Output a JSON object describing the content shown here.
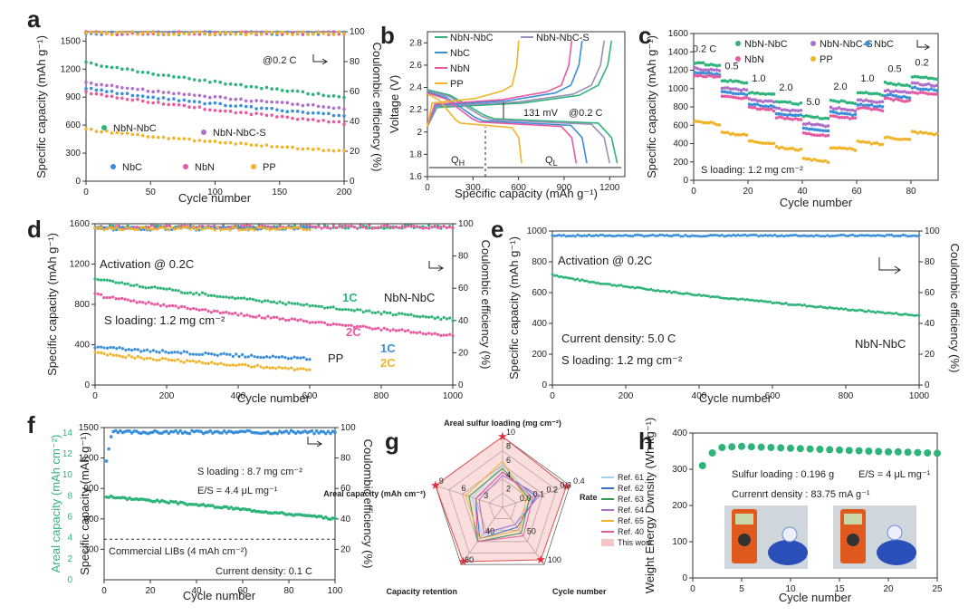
{
  "panels": {
    "a": {
      "label": "a",
      "xlabel": "Cycle number",
      "ylabel": "Specific capacity (mAh g⁻¹)",
      "y2label": "Coulombic efficiency (%)",
      "xlim": [
        0,
        200
      ],
      "ylim": [
        0,
        1600
      ],
      "y2lim": [
        0,
        100
      ],
      "xticks": [
        0,
        50,
        100,
        150,
        200
      ],
      "yticks": [
        0,
        300,
        600,
        900,
        1200,
        1500
      ],
      "y2ticks": [
        0,
        20,
        40,
        60,
        80,
        100
      ],
      "rate": "@0.2 C",
      "series": [
        {
          "name": "NbN-NbC",
          "color": "#2eb37a",
          "start": 1280,
          "end": 900
        },
        {
          "name": "NbN-NbC-S",
          "color": "#b06ec9",
          "start": 1060,
          "end": 780
        },
        {
          "name": "NbC",
          "color": "#3a8fd9",
          "start": 1000,
          "end": 700
        },
        {
          "name": "NbN",
          "color": "#e85aa0",
          "start": 960,
          "end": 620
        },
        {
          "name": "PP",
          "color": "#f0b429",
          "start": 560,
          "end": 320
        }
      ]
    },
    "b": {
      "label": "b",
      "xlabel": "Specific capacity (mAh g⁻¹)",
      "ylabel": "Voltage (V)",
      "xlim": [
        0,
        1300
      ],
      "ylim": [
        1.6,
        2.9
      ],
      "xticks": [
        0,
        300,
        600,
        900,
        1200
      ],
      "yticks": [
        1.6,
        1.8,
        2.0,
        2.2,
        2.4,
        2.6,
        2.8
      ],
      "rate": "@0.2 C",
      "gap": "131 mV",
      "qh": "Q",
      "qh_sub": "H",
      "ql": "Q",
      "ql_sub": "L",
      "series": [
        {
          "name": "NbN-NbC",
          "color": "#2eb37a",
          "cap": 1250
        },
        {
          "name": "NbN-NbC-S",
          "color": "#9b8fb5",
          "cap": 1200
        },
        {
          "name": "NbC",
          "color": "#3a8fd9",
          "cap": 1050
        },
        {
          "name": "NbN",
          "color": "#e85aa0",
          "cap": 980
        },
        {
          "name": "PP",
          "color": "#f0b429",
          "cap": 620
        }
      ]
    },
    "c": {
      "label": "c",
      "xlabel": "Cycle number",
      "ylabel": "Specific capacity (mAh g⁻¹)",
      "xlim": [
        0,
        90
      ],
      "ylim": [
        0,
        1600
      ],
      "xticks": [
        0,
        20,
        40,
        60,
        80
      ],
      "yticks": [
        0,
        200,
        400,
        600,
        800,
        1000,
        1200,
        1400,
        1600
      ],
      "loading": "S loading: 1.2 mg cm⁻²",
      "rates": [
        "0.2 C",
        "0.5",
        "1.0",
        "2.0",
        "5.0",
        "2.0",
        "1.0",
        "0.5",
        "0.2"
      ],
      "series": [
        {
          "name": "NbN-NbC",
          "color": "#2eb37a",
          "levels": [
            1280,
            1090,
            960,
            860,
            700,
            870,
            960,
            1060,
            1130
          ]
        },
        {
          "name": "NbN-NbC-S",
          "color": "#b06ec9",
          "levels": [
            1220,
            1010,
            880,
            780,
            620,
            790,
            880,
            980,
            1060
          ]
        },
        {
          "name": "NbC",
          "color": "#3a8fd9",
          "levels": [
            1180,
            960,
            830,
            730,
            560,
            740,
            830,
            930,
            1010
          ]
        },
        {
          "name": "NbN",
          "color": "#e85aa0",
          "levels": [
            1150,
            920,
            790,
            690,
            510,
            700,
            790,
            890,
            960
          ]
        },
        {
          "name": "PP",
          "color": "#f0b429",
          "levels": [
            640,
            520,
            430,
            360,
            230,
            360,
            420,
            470,
            530
          ]
        }
      ]
    },
    "d": {
      "label": "d",
      "xlabel": "Cycle number",
      "ylabel": "Specific capacity (mAh g⁻¹)",
      "y2label": "Coulombic efficiency (%)",
      "xlim": [
        0,
        1000
      ],
      "ylim": [
        0,
        1600
      ],
      "y2lim": [
        0,
        100
      ],
      "xticks": [
        0,
        200,
        400,
        600,
        800,
        1000
      ],
      "yticks": [
        0,
        400,
        800,
        1200,
        1600
      ],
      "y2ticks": [
        0,
        20,
        40,
        60,
        80,
        100
      ],
      "activation": "Activation @ 0.2C",
      "loading": "S loading: 1.2 mg cm⁻²",
      "tag_1c": "1C",
      "tag_2c": "2C",
      "tag_pp_1c": "1C",
      "tag_pp_2c": "2C",
      "nbn_name": "NbN-NbC",
      "pp_name": "PP",
      "series": [
        {
          "name": "NbN-NbC 1C",
          "color": "#2eb37a",
          "start": 1060,
          "end": 650,
          "len": 1000
        },
        {
          "name": "NbN-NbC 2C",
          "color": "#e85aa0",
          "start": 900,
          "end": 490,
          "len": 1000
        },
        {
          "name": "PP 1C",
          "color": "#3a8fd9",
          "start": 380,
          "end": 260,
          "len": 600
        },
        {
          "name": "PP 2C",
          "color": "#f0b429",
          "start": 320,
          "end": 150,
          "len": 600
        }
      ]
    },
    "e": {
      "label": "e",
      "xlabel": "Cycle number",
      "ylabel": "Specific capacity (mAh g⁻¹)",
      "y2label": "Coulombic efficiency (%)",
      "xlim": [
        0,
        1000
      ],
      "ylim": [
        0,
        1000
      ],
      "y2lim": [
        0,
        100
      ],
      "xticks": [
        0,
        200,
        400,
        600,
        800,
        1000
      ],
      "yticks": [
        0,
        200,
        400,
        600,
        800,
        1000
      ],
      "y2ticks": [
        0,
        20,
        40,
        60,
        80,
        100
      ],
      "activation": "Activation @ 0.2C",
      "current": "Current density: 5.0 C",
      "loading": "S loading: 1.2 mg cm⁻²",
      "name": "NbN-NbC",
      "series": [
        {
          "name": "NbN-NbC",
          "color": "#2eb37a",
          "start": 720,
          "end": 450
        }
      ]
    },
    "f": {
      "label": "f",
      "xlabel": "Cycle number",
      "ylabel": "Specific capacity (mAh g⁻¹)",
      "y2label": "Coulombic efficiency (%)",
      "ylabel_left": "Areal capacity (mAh cm⁻²)",
      "xlim": [
        0,
        100
      ],
      "ylim": [
        0,
        1500
      ],
      "y2lim": [
        0,
        100
      ],
      "xticks": [
        0,
        20,
        40,
        60,
        80,
        100
      ],
      "yticks": [
        300,
        600,
        900,
        1200,
        1500
      ],
      "y2ticks": [
        20,
        40,
        60,
        80,
        100
      ],
      "areal_ticks": [
        0,
        2,
        4,
        6,
        8,
        10,
        12,
        14
      ],
      "loading": "S loading : 8.7 mg cm⁻²",
      "es": "E/S = 4.4 μL mg⁻¹",
      "commercial": "Commercial LIBs (4 mAh cm⁻²)",
      "current": "Current density: 0.1 C",
      "series": [
        {
          "name": "NbN-NbC",
          "color": "#2eb37a",
          "start": 820,
          "end": 600
        }
      ]
    },
    "g": {
      "label": "g",
      "axes": [
        "Areal sulfur loading (mg cm⁻²)",
        "Rate",
        "Cycle number",
        "Capacity retention",
        "Areal capacity (mAh cm⁻²)"
      ],
      "axis_ticks": [
        [
          "2",
          "4",
          "6",
          "8",
          "10"
        ],
        [
          "0.0",
          "0.1",
          "0.2",
          "0.3",
          "0.4"
        ],
        [
          "50",
          "100"
        ],
        [
          "40",
          "80"
        ],
        [
          "3",
          "6",
          "9"
        ]
      ],
      "legend": [
        "Ref. 61",
        "Ref. 62",
        "Ref. 63",
        "Ref. 64",
        "Ref. 65",
        "Ref. 40",
        "This work"
      ],
      "legend_colors": [
        "#9fd3e6",
        "#3a6fc9",
        "#2e9b4e",
        "#b06ec9",
        "#f0b429",
        "#e85aa0",
        "#f6c6c6"
      ]
    },
    "h": {
      "label": "h",
      "xlabel": "Cycle number",
      "ylabel": "Weight Energy Dwnsity (Wh kg⁻¹)",
      "xlim": [
        0,
        25
      ],
      "ylim": [
        0,
        400
      ],
      "xticks": [
        0,
        5,
        10,
        15,
        20,
        25
      ],
      "yticks": [
        0,
        100,
        200,
        300,
        400
      ],
      "loading": "Sulfur loading : 0.196 g",
      "es": "E/S = 4 μL mg⁻¹",
      "current": "Currenrt density : 83.75 mA g⁻¹",
      "photo_left": "Photo of multimeter and pouch cell",
      "photo_right": "Photo of multimeter and pouch cell",
      "series": [
        {
          "name": "NbN-NbC",
          "color": "#2eb37a",
          "values": [
            310,
            345,
            360,
            362,
            363,
            362,
            361,
            360,
            359,
            358,
            357,
            356,
            355,
            354,
            353,
            352,
            351,
            350,
            349,
            348,
            348,
            347,
            346,
            345,
            344
          ]
        }
      ]
    }
  }
}
